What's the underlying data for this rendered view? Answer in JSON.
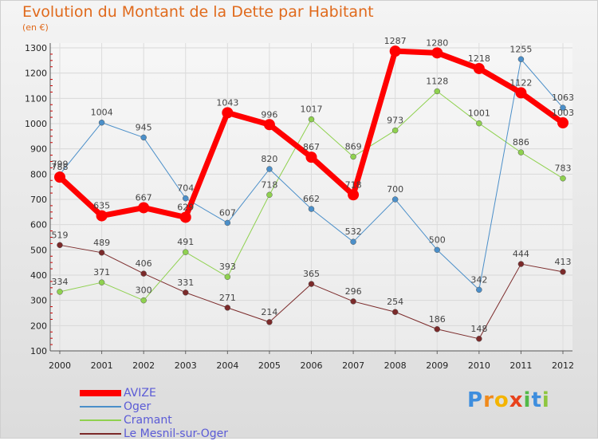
{
  "chart_data": {
    "type": "line",
    "title": "Evolution du Montant de la Dette par Habitant",
    "unit_label": "(en €)",
    "x": [
      "2000",
      "2001",
      "2002",
      "2003",
      "2004",
      "2005",
      "2006",
      "2007",
      "2008",
      "2009",
      "2010",
      "2011",
      "2012"
    ],
    "ylim": [
      100,
      1300
    ],
    "yticks": [
      100,
      200,
      300,
      400,
      500,
      600,
      700,
      800,
      900,
      1000,
      1100,
      1200,
      1300
    ],
    "grid": true,
    "legend_position": "bottom-left",
    "series": [
      {
        "name": "Le Mesnil-sur-Oger",
        "color": "#7b2a2a",
        "width": 1,
        "marker": 3.5,
        "values": [
          519,
          489,
          406,
          331,
          271,
          214,
          365,
          296,
          254,
          186,
          148,
          444,
          413
        ]
      },
      {
        "name": "Cramant",
        "color": "#8fd14f",
        "width": 1,
        "marker": 3.5,
        "values": [
          334,
          371,
          300,
          491,
          393,
          718,
          1017,
          869,
          973,
          1128,
          1001,
          886,
          783
        ]
      },
      {
        "name": "Oger",
        "color": "#4b8fc9",
        "width": 1,
        "marker": 3.5,
        "values": [
          799,
          1004,
          945,
          704,
          607,
          820,
          662,
          532,
          700,
          500,
          342,
          1255,
          1063
        ]
      },
      {
        "name": "AVIZE",
        "color": "#ff0000",
        "width": 7,
        "marker": 7,
        "values": [
          788,
          635,
          667,
          629,
          1043,
          996,
          867,
          718,
          1287,
          1280,
          1218,
          1122,
          1003
        ]
      }
    ]
  },
  "legend": [
    {
      "name": "AVIZE",
      "color": "#ff0000"
    },
    {
      "name": "Oger",
      "color": "#4b8fc9"
    },
    {
      "name": "Cramant",
      "color": "#8fd14f"
    },
    {
      "name": "Le Mesnil-sur-Oger",
      "color": "#7b2a2a"
    }
  ],
  "logo": {
    "text": "Proxiti",
    "letters": [
      "P",
      "r",
      "o",
      "x",
      "i",
      "t",
      "i"
    ],
    "colors": [
      "#3e8ede",
      "#f08a1c",
      "#f4b400",
      "#e8421c",
      "#52b948",
      "#3e8ede",
      "#8ec63f"
    ]
  }
}
